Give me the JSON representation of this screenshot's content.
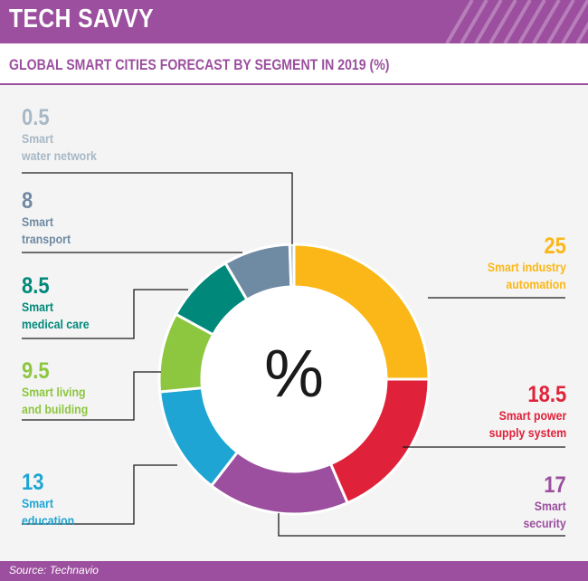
{
  "header": {
    "title": "TECH SAVVY"
  },
  "chart_data": {
    "type": "pie",
    "title": "GLOBAL SMART CITIES FORECAST BY SEGMENT IN 2019 (%)",
    "center_label": "%",
    "source": "Source: Technavio",
    "slices": [
      {
        "value": 25,
        "value_label": "25",
        "lines": [
          "Smart industry",
          "automation"
        ],
        "color": "#fbb717"
      },
      {
        "value": 18.5,
        "value_label": "18.5",
        "lines": [
          "Smart power",
          "supply system"
        ],
        "color": "#e0213a"
      },
      {
        "value": 17,
        "value_label": "17",
        "lines": [
          "Smart",
          "security"
        ],
        "color": "#9b4f9e"
      },
      {
        "value": 13,
        "value_label": "13",
        "lines": [
          "Smart",
          "education"
        ],
        "color": "#1ea5d3"
      },
      {
        "value": 9.5,
        "value_label": "9.5",
        "lines": [
          "Smart living",
          "and building"
        ],
        "color": "#8dc63f"
      },
      {
        "value": 8.5,
        "value_label": "8.5",
        "lines": [
          "Smart",
          "medical care"
        ],
        "color": "#00897b"
      },
      {
        "value": 8,
        "value_label": "8",
        "lines": [
          "Smart",
          "transport"
        ],
        "color": "#6f8aa3"
      },
      {
        "value": 0.5,
        "value_label": "0.5",
        "lines": [
          "Smart",
          "water network"
        ],
        "color": "#a7b8c6"
      }
    ]
  },
  "colors": {
    "header_bg": "#9b4f9e",
    "chart_bg": "#f4f4f4",
    "leader_line": "#1a1a1a"
  }
}
